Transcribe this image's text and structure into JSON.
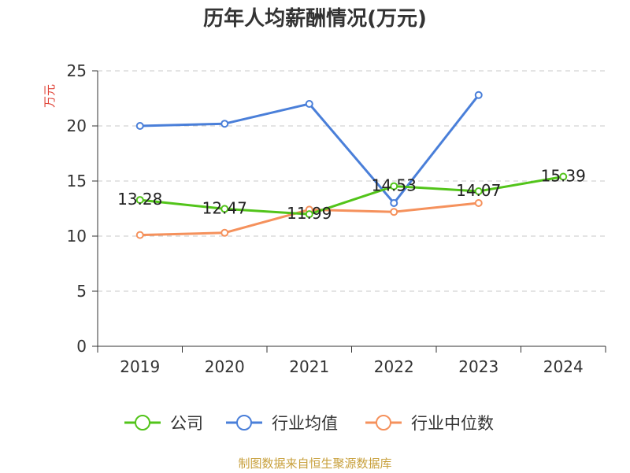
{
  "chart_data": {
    "type": "line",
    "title": "历年人均薪酬情况(万元)",
    "ylabel": "万元",
    "xlabel": "",
    "categories": [
      "2019",
      "2020",
      "2021",
      "2022",
      "2023",
      "2024"
    ],
    "ylim": [
      0,
      25
    ],
    "yticks": [
      "0",
      "5",
      "10",
      "15",
      "20",
      "25"
    ],
    "grid": true,
    "legend_position": "bottom",
    "series": [
      {
        "name": "公司",
        "color": "#52c41a",
        "values": [
          13.28,
          12.47,
          11.99,
          14.53,
          14.07,
          15.39
        ],
        "data_labels": [
          "13.28",
          "12.47",
          "11.99",
          "14.53",
          "14.07",
          "15.39"
        ]
      },
      {
        "name": "行业均值",
        "color": "#4a7fd9",
        "values": [
          20.0,
          20.2,
          22.0,
          13.0,
          22.8,
          null
        ]
      },
      {
        "name": "行业中位数",
        "color": "#f5915c",
        "values": [
          10.1,
          10.3,
          12.4,
          12.2,
          13.0,
          null
        ]
      }
    ]
  },
  "footer": {
    "source": "制图数据来自恒生聚源数据库"
  }
}
